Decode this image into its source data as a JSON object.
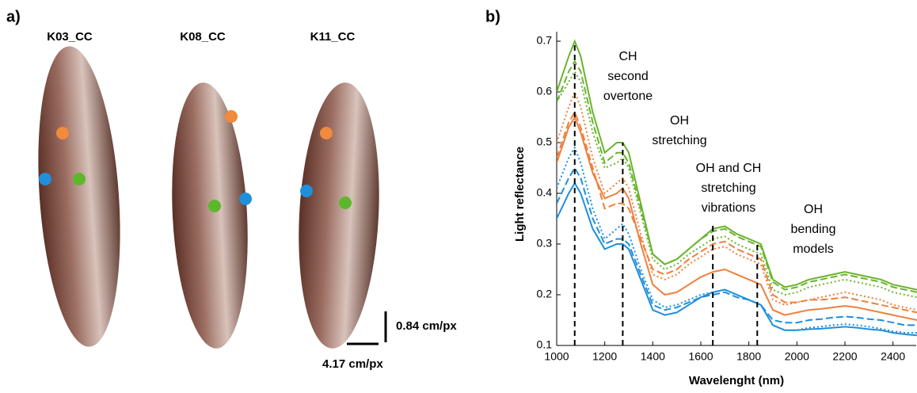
{
  "panel_a": {
    "label": "a)",
    "samples": [
      "K03_CC",
      "K08_CC",
      "K11_CC"
    ],
    "scale_vertical": "0.84 cm/px",
    "scale_horizontal": "4.17 cm/px"
  },
  "chart_data": {
    "type": "line",
    "panel_label": "b)",
    "xlabel": "Wavelenght (nm)",
    "ylabel": "Light reflectance",
    "x": [
      1000,
      1050,
      1075,
      1100,
      1150,
      1200,
      1250,
      1275,
      1300,
      1350,
      1400,
      1450,
      1500,
      1550,
      1600,
      1650,
      1700,
      1750,
      1800,
      1850,
      1900,
      1950,
      2000,
      2050,
      2100,
      2150,
      2200,
      2250,
      2300,
      2350,
      2400,
      2450,
      2500
    ],
    "xlim": [
      1000,
      2500
    ],
    "xticks": [
      1000,
      1200,
      1400,
      1600,
      1800,
      2000,
      2200,
      2400
    ],
    "ylim": [
      0.1,
      0.7
    ],
    "yticks": [
      0.1,
      0.2,
      0.3,
      0.4,
      0.5,
      0.6,
      0.7
    ],
    "series": [
      {
        "color": "#6ab42d",
        "dash": "solid",
        "values": [
          0.6,
          0.67,
          0.7,
          0.67,
          0.56,
          0.48,
          0.5,
          0.5,
          0.48,
          0.38,
          0.28,
          0.26,
          0.27,
          0.29,
          0.31,
          0.33,
          0.335,
          0.32,
          0.31,
          0.3,
          0.23,
          0.215,
          0.22,
          0.23,
          0.235,
          0.24,
          0.245,
          0.24,
          0.235,
          0.23,
          0.22,
          0.215,
          0.21
        ]
      },
      {
        "color": "#6ab42d",
        "dash": "dashed",
        "values": [
          0.58,
          0.64,
          0.66,
          0.64,
          0.54,
          0.46,
          0.48,
          0.48,
          0.46,
          0.37,
          0.28,
          0.26,
          0.27,
          0.29,
          0.31,
          0.325,
          0.33,
          0.315,
          0.305,
          0.295,
          0.225,
          0.21,
          0.215,
          0.225,
          0.23,
          0.235,
          0.24,
          0.235,
          0.23,
          0.225,
          0.215,
          0.21,
          0.205
        ]
      },
      {
        "color": "#6ab42d",
        "dash": "dotted",
        "values": [
          0.58,
          0.62,
          0.64,
          0.62,
          0.52,
          0.45,
          0.46,
          0.47,
          0.45,
          0.36,
          0.27,
          0.25,
          0.26,
          0.28,
          0.295,
          0.31,
          0.315,
          0.3,
          0.29,
          0.28,
          0.21,
          0.2,
          0.205,
          0.215,
          0.22,
          0.225,
          0.23,
          0.225,
          0.22,
          0.215,
          0.205,
          0.2,
          0.195
        ]
      },
      {
        "color": "#f07f3c",
        "dash": "solid",
        "values": [
          0.46,
          0.53,
          0.55,
          0.52,
          0.44,
          0.39,
          0.4,
          0.41,
          0.39,
          0.3,
          0.22,
          0.2,
          0.205,
          0.22,
          0.235,
          0.245,
          0.25,
          0.24,
          0.23,
          0.22,
          0.17,
          0.16,
          0.165,
          0.17,
          0.172,
          0.175,
          0.178,
          0.175,
          0.17,
          0.165,
          0.16,
          0.155,
          0.15
        ]
      },
      {
        "color": "#f07f3c",
        "dash": "dashed",
        "values": [
          0.47,
          0.54,
          0.56,
          0.53,
          0.45,
          0.37,
          0.38,
          0.38,
          0.37,
          0.31,
          0.25,
          0.24,
          0.25,
          0.27,
          0.285,
          0.3,
          0.305,
          0.29,
          0.28,
          0.27,
          0.2,
          0.185,
          0.185,
          0.19,
          0.19,
          0.192,
          0.195,
          0.19,
          0.185,
          0.18,
          0.175,
          0.17,
          0.165
        ]
      },
      {
        "color": "#f07f3c",
        "dash": "dotted",
        "values": [
          0.5,
          0.57,
          0.6,
          0.57,
          0.47,
          0.4,
          0.42,
          0.43,
          0.41,
          0.32,
          0.24,
          0.23,
          0.24,
          0.26,
          0.275,
          0.29,
          0.295,
          0.28,
          0.27,
          0.26,
          0.19,
          0.18,
          0.185,
          0.19,
          0.195,
          0.2,
          0.205,
          0.2,
          0.195,
          0.19,
          0.18,
          0.175,
          0.17
        ]
      },
      {
        "color": "#1f8fdc",
        "dash": "solid",
        "values": [
          0.35,
          0.4,
          0.42,
          0.4,
          0.33,
          0.29,
          0.3,
          0.3,
          0.29,
          0.23,
          0.17,
          0.16,
          0.165,
          0.18,
          0.195,
          0.205,
          0.21,
          0.2,
          0.19,
          0.18,
          0.14,
          0.13,
          0.13,
          0.132,
          0.133,
          0.135,
          0.137,
          0.135,
          0.132,
          0.13,
          0.125,
          0.122,
          0.12
        ]
      },
      {
        "color": "#1f8fdc",
        "dash": "dashed",
        "values": [
          0.38,
          0.43,
          0.45,
          0.43,
          0.35,
          0.3,
          0.31,
          0.31,
          0.3,
          0.24,
          0.18,
          0.17,
          0.175,
          0.185,
          0.195,
          0.2,
          0.205,
          0.195,
          0.19,
          0.18,
          0.15,
          0.145,
          0.145,
          0.15,
          0.152,
          0.155,
          0.157,
          0.155,
          0.152,
          0.15,
          0.145,
          0.14,
          0.14
        ]
      },
      {
        "color": "#1f8fdc",
        "dash": "dotted",
        "values": [
          0.41,
          0.47,
          0.49,
          0.46,
          0.37,
          0.31,
          0.33,
          0.34,
          0.32,
          0.25,
          0.19,
          0.175,
          0.18,
          0.19,
          0.2,
          0.205,
          0.21,
          0.2,
          0.19,
          0.18,
          0.14,
          0.13,
          0.13,
          0.135,
          0.137,
          0.14,
          0.142,
          0.14,
          0.137,
          0.133,
          0.128,
          0.125,
          0.125
        ]
      }
    ],
    "reference_lines": [
      {
        "x": 1075,
        "top": 0.7
      },
      {
        "x": 1275,
        "top": 0.5
      },
      {
        "x": 1650,
        "top": 0.34
      },
      {
        "x": 1835,
        "top": 0.3
      }
    ],
    "annotations": [
      [
        "CH",
        "second",
        "overtone"
      ],
      [
        "OH",
        "stretching"
      ],
      [
        "OH and CH",
        "stretching",
        "vibrations"
      ],
      [
        "OH",
        "bending",
        "models"
      ]
    ]
  }
}
